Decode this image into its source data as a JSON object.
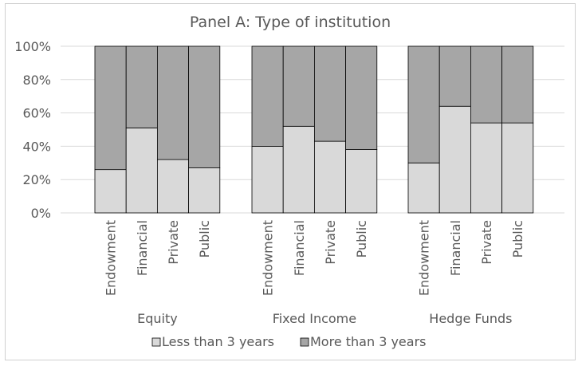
{
  "chart_data": {
    "type": "bar",
    "stacked": "percent",
    "title": "Panel A: Type of institution",
    "groups": [
      "Equity",
      "Fixed Income",
      "Hedge Funds"
    ],
    "categories": [
      "Endowment",
      "Financial",
      "Private",
      "Public"
    ],
    "series": [
      {
        "name": "Less than 3 years",
        "color": "#d9d9d9",
        "values": [
          [
            26,
            51,
            32,
            27
          ],
          [
            40,
            52,
            43,
            38
          ],
          [
            30,
            64,
            54,
            54
          ]
        ]
      },
      {
        "name": "More than 3 years",
        "color": "#a6a6a6",
        "values": [
          [
            74,
            49,
            68,
            73
          ],
          [
            60,
            48,
            57,
            62
          ],
          [
            70,
            36,
            46,
            46
          ]
        ]
      }
    ],
    "ylim": [
      0,
      100
    ],
    "yticks": [
      "0%",
      "20%",
      "40%",
      "60%",
      "80%",
      "100%"
    ],
    "grid": true,
    "legend_position": "bottom"
  }
}
